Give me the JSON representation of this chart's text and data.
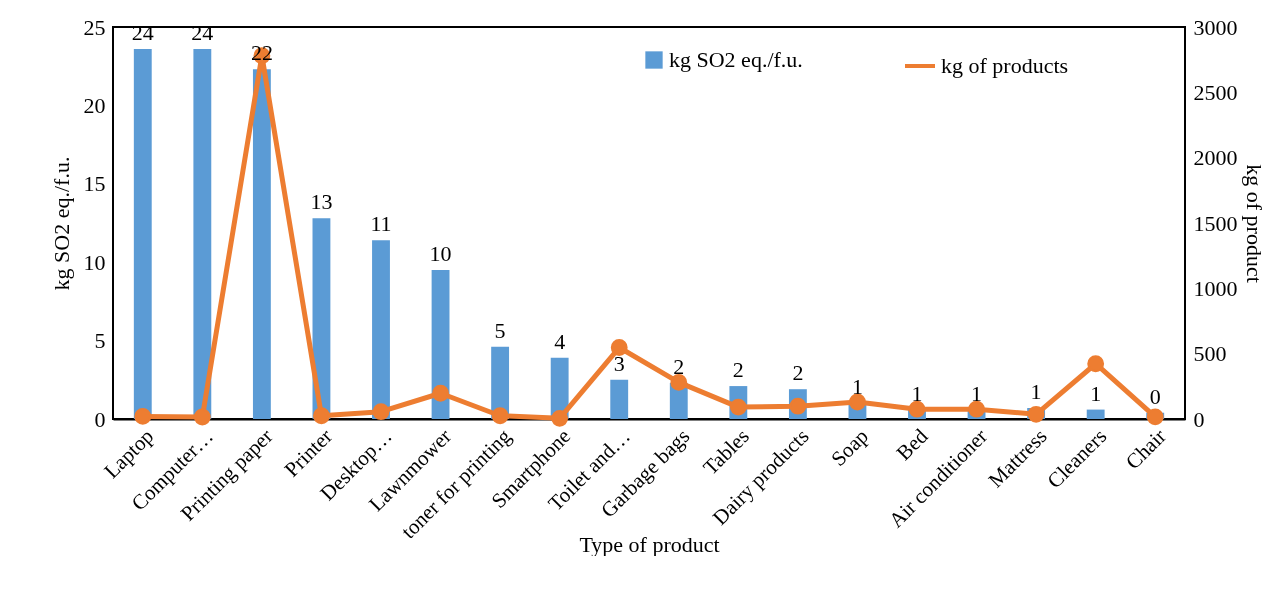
{
  "chart_data": {
    "type": "bar",
    "xlabel": "Type of product",
    "ylabel": "kg SO2 eq./f.u.",
    "y2label": "kg of product",
    "categories": [
      "Laptop",
      "Computer…",
      "Printing paper",
      "Printer",
      "Desktop…",
      "Lawnmower",
      "toner for printing",
      "Smartphone",
      "Toilet and…",
      "Garbage bags",
      "Tables",
      "Dairy products",
      "Soap",
      "Bed",
      "Air conditioner",
      "Mattress",
      "Cleaners",
      "Chair"
    ],
    "series": [
      {
        "name": "kg SO2 eq./f.u.",
        "color": "#5b9bd5",
        "values": [
          23.6,
          23.6,
          22.3,
          12.8,
          11.4,
          9.5,
          4.6,
          3.9,
          2.5,
          2.3,
          2.1,
          1.9,
          1.0,
          0.6,
          0.6,
          0.7,
          0.6,
          0.4
        ],
        "value_labels": [
          "24",
          "24",
          "22",
          "13",
          "11",
          "10",
          "5",
          "4",
          "3",
          "2",
          "2",
          "2",
          "1",
          "1",
          "1",
          "1",
          "1",
          "0"
        ]
      },
      {
        "name": "kg of products",
        "type": "line",
        "axis": "y2",
        "color": "#ed7d31",
        "values": [
          20,
          15,
          2780,
          25,
          56,
          197,
          25,
          5,
          547,
          280,
          91,
          98,
          130,
          75,
          75,
          36,
          423,
          16
        ]
      }
    ],
    "ylim": [
      0,
      25
    ],
    "yticks": [
      0,
      5,
      10,
      15,
      20,
      25
    ],
    "y2lim": [
      0,
      3000
    ],
    "y2ticks": [
      0,
      500,
      1000,
      1500,
      2000,
      2500,
      3000
    ],
    "legend": "top right",
    "grid": false,
    "marker": "circle",
    "line_style": "solid"
  }
}
